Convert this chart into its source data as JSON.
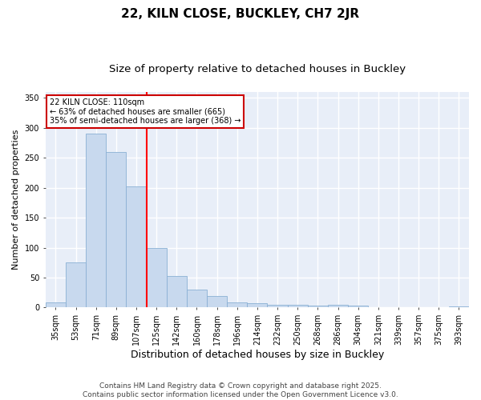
{
  "title1": "22, KILN CLOSE, BUCKLEY, CH7 2JR",
  "title2": "Size of property relative to detached houses in Buckley",
  "xlabel": "Distribution of detached houses by size in Buckley",
  "ylabel": "Number of detached properties",
  "categories": [
    "35sqm",
    "53sqm",
    "71sqm",
    "89sqm",
    "107sqm",
    "125sqm",
    "142sqm",
    "160sqm",
    "178sqm",
    "196sqm",
    "214sqm",
    "232sqm",
    "250sqm",
    "268sqm",
    "286sqm",
    "304sqm",
    "321sqm",
    "339sqm",
    "357sqm",
    "375sqm",
    "393sqm"
  ],
  "values": [
    8,
    75,
    290,
    260,
    202,
    100,
    53,
    30,
    19,
    8,
    7,
    5,
    4,
    3,
    4,
    3,
    0,
    0,
    0,
    0,
    2
  ],
  "bar_color": "#c8d9ee",
  "bar_edge_color": "#8ab0d4",
  "red_line_x": 4.5,
  "annotation_text": "22 KILN CLOSE: 110sqm\n← 63% of detached houses are smaller (665)\n35% of semi-detached houses are larger (368) →",
  "annotation_box_color": "#ffffff",
  "annotation_box_edge_color": "#cc0000",
  "ylim": [
    0,
    360
  ],
  "yticks": [
    0,
    50,
    100,
    150,
    200,
    250,
    300,
    350
  ],
  "bg_color": "#e8eef8",
  "grid_color": "#ffffff",
  "fig_color": "#ffffff",
  "footer": "Contains HM Land Registry data © Crown copyright and database right 2025.\nContains public sector information licensed under the Open Government Licence v3.0.",
  "title_fontsize": 11,
  "subtitle_fontsize": 9.5,
  "xlabel_fontsize": 9,
  "ylabel_fontsize": 8,
  "tick_fontsize": 7,
  "footer_fontsize": 6.5,
  "annot_fontsize": 7
}
